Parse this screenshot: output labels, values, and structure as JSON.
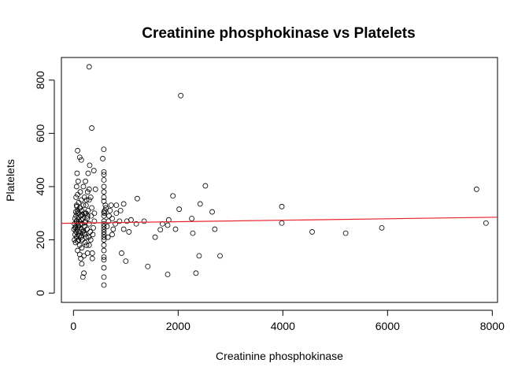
{
  "chart_data": {
    "type": "scatter",
    "title": "Creatinine phosphokinase vs Platelets",
    "xlabel": "Creatinine phosphokinase",
    "ylabel": "Platelets",
    "xlim": [
      -230,
      8100
    ],
    "ylim": [
      -35,
      885
    ],
    "xticks": [
      0,
      2000,
      4000,
      6000,
      8000
    ],
    "yticks": [
      0,
      200,
      400,
      600,
      800
    ],
    "grid": false,
    "legend": "none",
    "point_style": "open-circle",
    "point_color": "#000000",
    "regression_line": {
      "x": [
        -230,
        8100
      ],
      "y": [
        262,
        285
      ],
      "color": "#e8222a"
    },
    "points": [
      [
        300,
        850
      ],
      [
        2050,
        742
      ],
      [
        350,
        620
      ],
      [
        580,
        540
      ],
      [
        80,
        535
      ],
      [
        560,
        505
      ],
      [
        150,
        500
      ],
      [
        120,
        510
      ],
      [
        2520,
        403
      ],
      [
        7700,
        390
      ],
      [
        1900,
        365
      ],
      [
        1220,
        355
      ],
      [
        3980,
        325
      ],
      [
        2420,
        335
      ],
      [
        2650,
        305
      ],
      [
        2020,
        315
      ],
      [
        5890,
        245
      ],
      [
        7880,
        263
      ],
      [
        3980,
        263
      ],
      [
        5200,
        225
      ],
      [
        4560,
        230
      ],
      [
        2800,
        140
      ],
      [
        2400,
        140
      ],
      [
        2340,
        75
      ],
      [
        2700,
        240
      ],
      [
        2280,
        225
      ],
      [
        2260,
        280
      ],
      [
        1800,
        255
      ],
      [
        1820,
        275
      ],
      [
        1950,
        240
      ],
      [
        1660,
        238
      ],
      [
        1560,
        210
      ],
      [
        1420,
        100
      ],
      [
        1800,
        70
      ],
      [
        1200,
        260
      ],
      [
        1060,
        230
      ],
      [
        1020,
        270
      ],
      [
        960,
        335
      ],
      [
        960,
        240
      ],
      [
        920,
        150
      ],
      [
        900,
        310
      ],
      [
        880,
        270
      ],
      [
        820,
        330
      ],
      [
        820,
        300
      ],
      [
        800,
        260
      ],
      [
        760,
        240
      ],
      [
        740,
        220
      ],
      [
        740,
        280
      ],
      [
        720,
        330
      ],
      [
        700,
        310
      ],
      [
        680,
        290
      ],
      [
        670,
        270
      ],
      [
        660,
        210
      ],
      [
        640,
        250
      ],
      [
        620,
        320
      ],
      [
        610,
        330
      ],
      [
        600,
        310
      ],
      [
        590,
        300
      ],
      [
        582,
        455
      ],
      [
        582,
        445
      ],
      [
        582,
        425
      ],
      [
        582,
        400
      ],
      [
        582,
        380
      ],
      [
        582,
        360
      ],
      [
        582,
        345
      ],
      [
        582,
        305
      ],
      [
        582,
        290
      ],
      [
        582,
        270
      ],
      [
        582,
        260
      ],
      [
        582,
        250
      ],
      [
        582,
        240
      ],
      [
        582,
        230
      ],
      [
        582,
        220
      ],
      [
        582,
        210
      ],
      [
        582,
        200
      ],
      [
        582,
        180
      ],
      [
        582,
        160
      ],
      [
        582,
        135
      ],
      [
        582,
        125
      ],
      [
        582,
        95
      ],
      [
        582,
        60
      ],
      [
        582,
        30
      ],
      [
        1100,
        275
      ],
      [
        1350,
        270
      ],
      [
        1700,
        260
      ],
      [
        1000,
        120
      ],
      [
        420,
        390
      ],
      [
        400,
        300
      ],
      [
        400,
        270
      ],
      [
        390,
        460
      ],
      [
        380,
        245
      ],
      [
        370,
        220
      ],
      [
        360,
        150
      ],
      [
        360,
        130
      ],
      [
        350,
        320
      ],
      [
        340,
        290
      ],
      [
        330,
        200
      ],
      [
        320,
        230
      ],
      [
        310,
        480
      ],
      [
        300,
        390
      ],
      [
        300,
        350
      ],
      [
        300,
        260
      ],
      [
        290,
        210
      ],
      [
        280,
        450
      ],
      [
        280,
        310
      ],
      [
        270,
        380
      ],
      [
        270,
        150
      ],
      [
        260,
        280
      ],
      [
        260,
        240
      ],
      [
        250,
        180
      ],
      [
        240,
        330
      ],
      [
        240,
        300
      ],
      [
        230,
        420
      ],
      [
        230,
        270
      ],
      [
        220,
        220
      ],
      [
        220,
        190
      ],
      [
        210,
        360
      ],
      [
        210,
        250
      ],
      [
        200,
        140
      ],
      [
        200,
        300
      ],
      [
        190,
        400
      ],
      [
        190,
        330
      ],
      [
        180,
        280
      ],
      [
        180,
        230
      ],
      [
        170,
        260
      ],
      [
        170,
        200
      ],
      [
        160,
        310
      ],
      [
        160,
        170
      ],
      [
        150,
        350
      ],
      [
        150,
        240
      ],
      [
        140,
        290
      ],
      [
        140,
        210
      ],
      [
        130,
        380
      ],
      [
        130,
        260
      ],
      [
        120,
        320
      ],
      [
        120,
        180
      ],
      [
        110,
        270
      ],
      [
        110,
        230
      ],
      [
        100,
        340
      ],
      [
        100,
        300
      ],
      [
        100,
        250
      ],
      [
        100,
        200
      ],
      [
        90,
        420
      ],
      [
        90,
        280
      ],
      [
        90,
        220
      ],
      [
        80,
        370
      ],
      [
        80,
        310
      ],
      [
        80,
        260
      ],
      [
        80,
        160
      ],
      [
        70,
        450
      ],
      [
        70,
        300
      ],
      [
        70,
        240
      ],
      [
        60,
        400
      ],
      [
        60,
        330
      ],
      [
        60,
        270
      ],
      [
        60,
        210
      ],
      [
        50,
        360
      ],
      [
        50,
        290
      ],
      [
        50,
        230
      ],
      [
        40,
        250
      ],
      [
        40,
        190
      ],
      [
        30,
        280
      ],
      [
        30,
        220
      ],
      [
        20,
        260
      ],
      [
        20,
        200
      ],
      [
        10,
        240
      ],
      [
        200,
        75
      ],
      [
        180,
        60
      ],
      [
        160,
        110
      ],
      [
        140,
        130
      ],
      [
        130,
        320
      ],
      [
        250,
        350
      ],
      [
        230,
        300
      ],
      [
        210,
        225
      ],
      [
        330,
        360
      ],
      [
        300,
        180
      ],
      [
        270,
        290
      ],
      [
        240,
        210
      ],
      [
        220,
        265
      ],
      [
        190,
        235
      ],
      [
        170,
        295
      ],
      [
        150,
        275
      ],
      [
        110,
        215
      ],
      [
        90,
        255
      ],
      [
        75,
        195
      ],
      [
        65,
        325
      ],
      [
        55,
        270
      ],
      [
        45,
        305
      ],
      [
        35,
        245
      ],
      [
        120,
        145
      ]
    ]
  }
}
